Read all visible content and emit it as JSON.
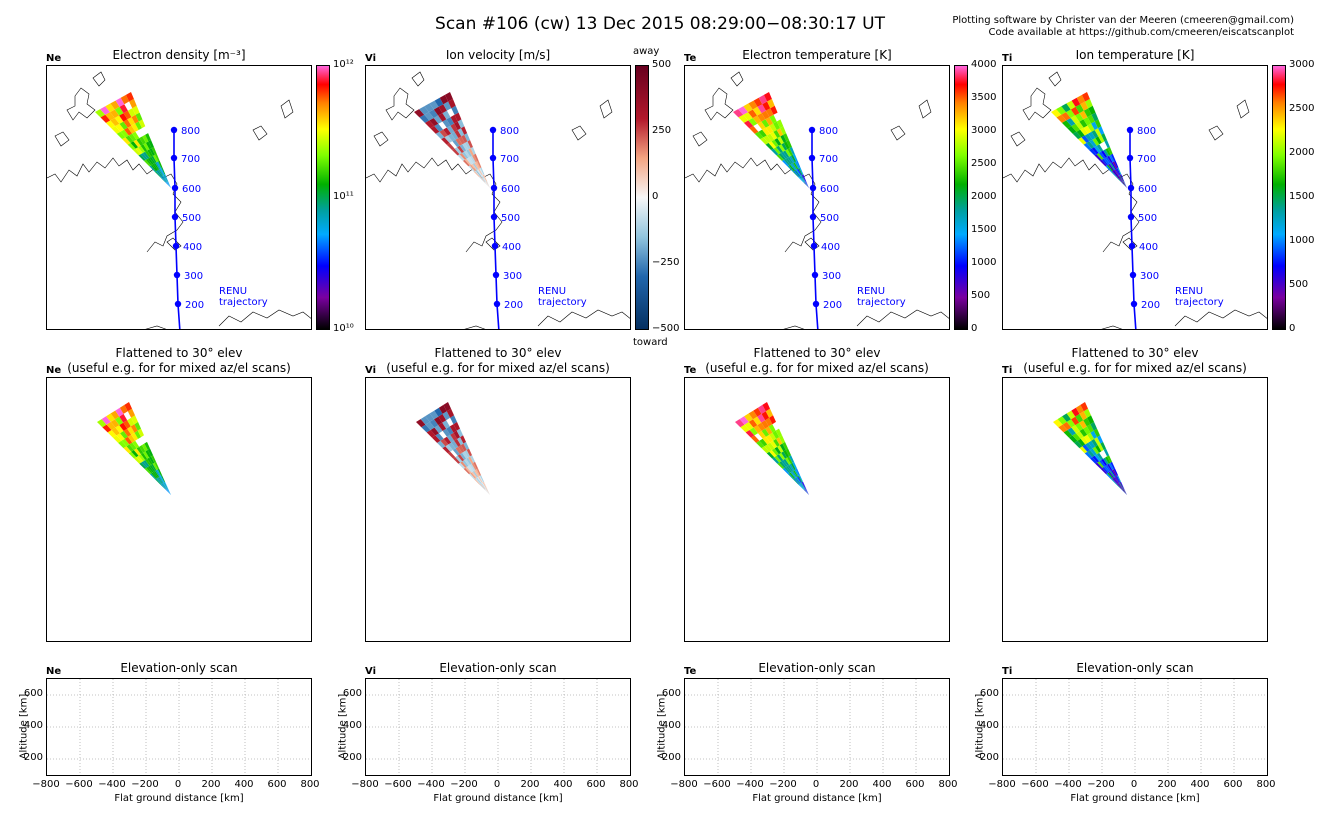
{
  "title": "Scan #106 (cw)   13 Dec 2015 08:29:00−08:30:17 UT",
  "credits": [
    "Plotting software by Christer van der Meeren (cmeeren@gmail.com)",
    "Code available at https://github.com/cmeeren/eiscatscanplot"
  ],
  "flattened_title": [
    "Flattened to 30° elev",
    "(useful e.g. for for mixed az/el scans)"
  ],
  "elev_title": "Elevation-only scan",
  "trajectory_label": [
    "RENU",
    "trajectory"
  ],
  "colors": {
    "trajectory": "#0000ff",
    "grid": "#b0b0b0"
  },
  "chart_data": [
    {
      "type": "heatmap",
      "panel": "Ne",
      "title": "Electron density [m⁻³]",
      "colormap": "rainbow-log",
      "colorbar": {
        "scale": "log",
        "range": [
          10000000000.0,
          1000000000000.0
        ],
        "ticks": [
          "10¹²",
          "10¹¹",
          "10¹⁰"
        ]
      },
      "trajectory_altitudes_km": [
        800,
        700,
        600,
        500,
        400,
        300,
        200
      ]
    },
    {
      "type": "heatmap",
      "panel": "Vi",
      "title": "Ion velocity [m/s]",
      "colormap": "diverging-RdBu",
      "colorbar": {
        "scale": "linear",
        "range": [
          -500,
          500
        ],
        "ticks": [
          "500",
          "250",
          "0",
          "−250",
          "−500"
        ],
        "top_label": "away",
        "bottom_label": "toward"
      },
      "trajectory_altitudes_km": [
        800,
        700,
        600,
        500,
        400,
        300,
        200
      ]
    },
    {
      "type": "heatmap",
      "panel": "Te",
      "title": "Electron temperature [K]",
      "colormap": "rainbow",
      "colorbar": {
        "scale": "linear",
        "range": [
          0,
          4000
        ],
        "ticks": [
          "4000",
          "3500",
          "3000",
          "2500",
          "2000",
          "1500",
          "1000",
          "500",
          "0"
        ]
      },
      "trajectory_altitudes_km": [
        800,
        700,
        600,
        500,
        400,
        300,
        200
      ]
    },
    {
      "type": "heatmap",
      "panel": "Ti",
      "title": "Ion temperature [K]",
      "colormap": "rainbow",
      "colorbar": {
        "scale": "linear",
        "range": [
          0,
          3000
        ],
        "ticks": [
          "3000",
          "2500",
          "2000",
          "1500",
          "1000",
          "500",
          "0"
        ]
      },
      "trajectory_altitudes_km": [
        800,
        700,
        600,
        500,
        400,
        300,
        200
      ]
    }
  ],
  "elevation_axes": {
    "xlabel": "Flat ground distance [km]",
    "ylabel": "Altitude [km]",
    "xlim": [
      -800,
      800
    ],
    "ylim": [
      100,
      700
    ],
    "xticks": [
      "−800",
      "−600",
      "−400",
      "−200",
      "0",
      "200",
      "400",
      "600",
      "800"
    ],
    "yticks": [
      "600",
      "400",
      "200"
    ],
    "grid": true
  }
}
